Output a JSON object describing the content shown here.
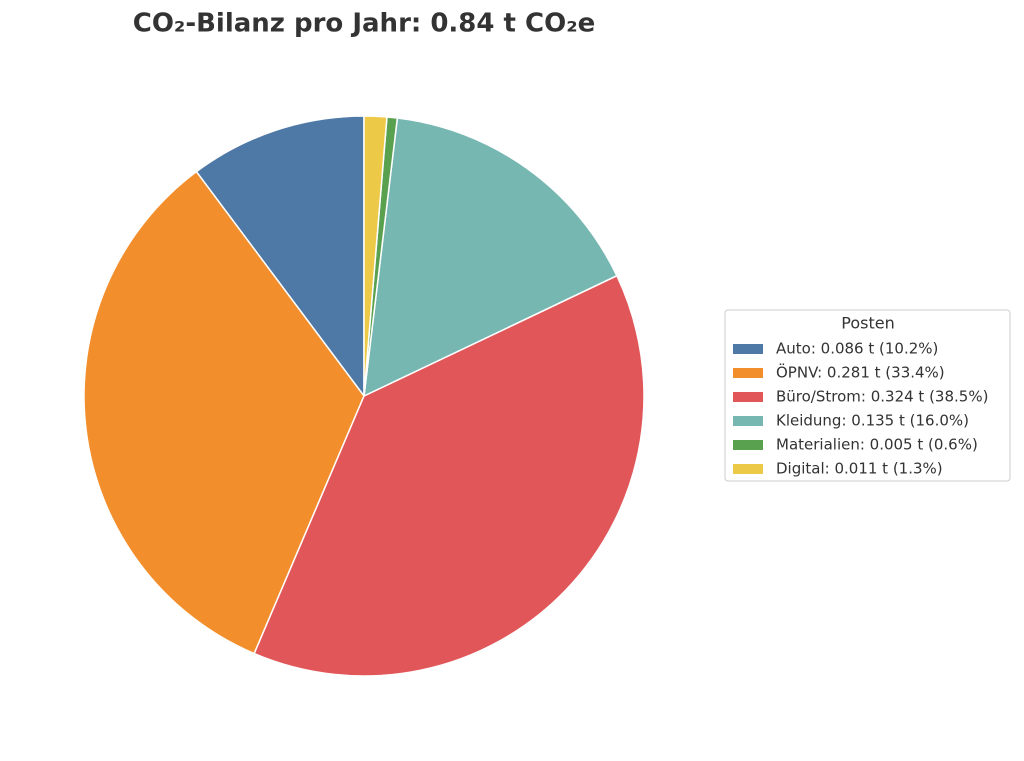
{
  "chart_data": {
    "type": "pie",
    "title": "CO₂-Bilanz pro Jahr: 0.84 t CO₂e",
    "categories": [
      "Auto: 0.086 t (10.2%)",
      "ÖPNV: 0.281 t (33.4%)",
      "Büro/Strom: 0.324 t (38.5%)",
      "Kleidung: 0.135 t (16.0%)",
      "Materialien: 0.005 t (0.6%)",
      "Digital: 0.011 t (1.3%)"
    ],
    "values": [
      0.086,
      0.281,
      0.324,
      0.135,
      0.005,
      0.011
    ],
    "colors": [
      "#4e79a7",
      "#f28e2b",
      "#e15759",
      "#76b7b2",
      "#59a14f",
      "#edc948"
    ],
    "legend_title": "Posten",
    "legend": "right"
  }
}
